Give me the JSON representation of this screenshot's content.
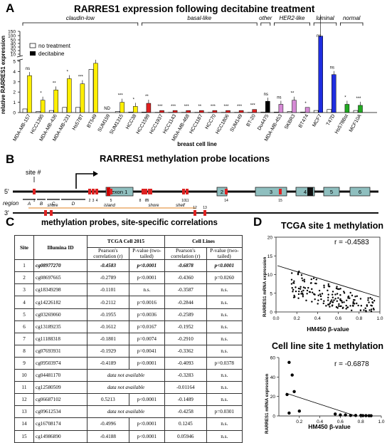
{
  "panel_a": {
    "label": "A",
    "title": "RARRES1 expression following decitabine treatment",
    "ylabel": "relative RARRES1 expression",
    "xlabel": "breast cell line",
    "legend": [
      "no treatment",
      "decitabine"
    ],
    "chart_data": {
      "type": "bar",
      "ylim_lower": [
        0,
        5
      ],
      "ylim_upper": [
        5,
        150
      ],
      "yticks_lower": [
        "0",
        "1",
        "2",
        "3",
        "4",
        "5"
      ],
      "yticks_upper": [
        "10",
        "20",
        "30",
        "40",
        "50",
        "100",
        "150"
      ],
      "groups": [
        "claudin-low",
        "basal-like",
        "other",
        "HER2-like",
        "luminal",
        "normal"
      ],
      "categories": [
        "MDA-MB-157",
        "HCC1395",
        "MDA-MB-436",
        "MDA-MB-231",
        "Hs578T",
        "BT549",
        "SUM159",
        "SUM1315",
        "HCC38",
        "HCC1599",
        "HCC1937",
        "HCC1143",
        "MDA-MB-468",
        "HCC1187",
        "HCC70",
        "HCC1806",
        "SUM149",
        "BT-20",
        "Du4475",
        "MDA-MB-453",
        "SKBR3",
        "BT474",
        "MCF7",
        "T47D",
        "Hs578Bst",
        "MCF10A"
      ],
      "annotations": [
        "ns",
        "*",
        "**",
        "*",
        "***",
        "",
        "ND",
        "***",
        "*",
        "**",
        "***",
        "***",
        "***",
        "**",
        "***",
        "***",
        "***",
        "***",
        "ns",
        "ns",
        "**",
        "*",
        "ns",
        "ns",
        "*",
        "***"
      ]
    }
  },
  "panel_b": {
    "label": "B",
    "title": "RARRES1 methylation probe locations",
    "site_label": "site #",
    "region_label": "region",
    "regions": [
      "A",
      "B",
      "C",
      "D"
    ],
    "strand5": "5'",
    "strand3": "3'",
    "exons": [
      "exon 1",
      "2",
      "3",
      "4",
      "5",
      "6"
    ],
    "sites_top": [
      "1",
      "2",
      "3",
      "4",
      "5",
      "6",
      "7",
      "8",
      "9",
      "10",
      "11",
      "14",
      "15"
    ],
    "sites_bottom": [
      "12",
      "13"
    ],
    "tracks": [
      "shore",
      "island",
      "shore",
      "shelf"
    ]
  },
  "panel_c": {
    "label": "C",
    "title": "methylation probes, site-specific correlations",
    "headers": {
      "site": "Site",
      "id": "Illumina ID",
      "tcga": "TCGA Cell 2015",
      "lines": "Cell Lines",
      "r": "Pearson's correlation (r)",
      "p": "P-value (two-tailed)"
    },
    "rows": [
      {
        "site": "1",
        "id": "cg08977270",
        "tr": "-0.4583",
        "tp": "p<0.0001",
        "cr": "-0.6878",
        "cp": "p<0.0001"
      },
      {
        "site": "2",
        "id": "cg08697665",
        "tr": "-0.2789",
        "tp": "p<0.0001",
        "cr": "-0.4360",
        "cp": "p=0.0260"
      },
      {
        "site": "3",
        "id": "cg18349298",
        "tr": "-0.1101",
        "tp": "n.s.",
        "cr": "-0.3587",
        "cp": "n.s."
      },
      {
        "site": "4",
        "id": "cg14226182",
        "tr": "-0.2112",
        "tp": "p=0.0016",
        "cr": "-0.2844",
        "cp": "n.s."
      },
      {
        "site": "5",
        "id": "cg03269060",
        "tr": "-0.1955",
        "tp": "p=0.0036",
        "cr": "-0.2589",
        "cp": "n.s."
      },
      {
        "site": "6",
        "id": "cg13189235",
        "tr": "-0.1612",
        "tp": "p=0.0167",
        "cr": "-0.1952",
        "cp": "n.s."
      },
      {
        "site": "7",
        "id": "cg11188318",
        "tr": "-0.1801",
        "tp": "p=0.0074",
        "cr": "-0.2910",
        "cp": "n.s."
      },
      {
        "site": "8",
        "id": "cg07693931",
        "tr": "-0.1929",
        "tp": "p=0.0041",
        "cr": "-0.3362",
        "cp": "n.s."
      },
      {
        "site": "9",
        "id": "cg09503974",
        "tr": "-0.4189",
        "tp": "p<0.0001",
        "cr": "-0.4093",
        "cp": "p=0.0378"
      },
      {
        "site": "10",
        "id": "cg04481170",
        "tna": "data not available",
        "cr": "-0.3283",
        "cp": "n.s."
      },
      {
        "site": "11",
        "id": "cg12580509",
        "tna": "data not available",
        "cr": "-0.01164",
        "cp": "n.s."
      },
      {
        "site": "12",
        "id": "cg06687102",
        "tr": "0.5213",
        "tp": "p<0.0001",
        "cr": "-0.1489",
        "cp": "n.s."
      },
      {
        "site": "13",
        "id": "cg09612534",
        "tna": "data not available",
        "cr": "-0.4258",
        "cp": "p=0.0301"
      },
      {
        "site": "14",
        "id": "cg16708174",
        "tr": "-0.4996",
        "tp": "p<0.0001",
        "cr": "0.1245",
        "cp": "n.s."
      },
      {
        "site": "15",
        "id": "cg14986890",
        "tr": "-0.4188",
        "tp": "p<0.0001",
        "cr": "0.05946",
        "cp": "n.s."
      }
    ]
  },
  "panel_d": {
    "label": "D",
    "tcga": {
      "title": "TCGA site 1 methylation",
      "r": "r = -0.4583",
      "xlabel": "HM450 β-value",
      "ylabel": "RARRES1 mRNA expression",
      "xticks": [
        "0.0",
        "0.2",
        "0.4",
        "0.6",
        "0.8",
        "1.0"
      ],
      "yticks": [
        "0",
        "5",
        "10",
        "15",
        "20"
      ]
    },
    "lines": {
      "title": "Cell line site 1 methylation",
      "r": "r = -0.6878",
      "xlabel": "HM450 β-value",
      "ylabel": "RARRES1 mRNA expression",
      "xticks": [
        "0.2",
        "0.4",
        "0.6",
        "0.8",
        "1.0"
      ],
      "yticks": [
        "0",
        "20",
        "40",
        "60"
      ]
    }
  }
}
